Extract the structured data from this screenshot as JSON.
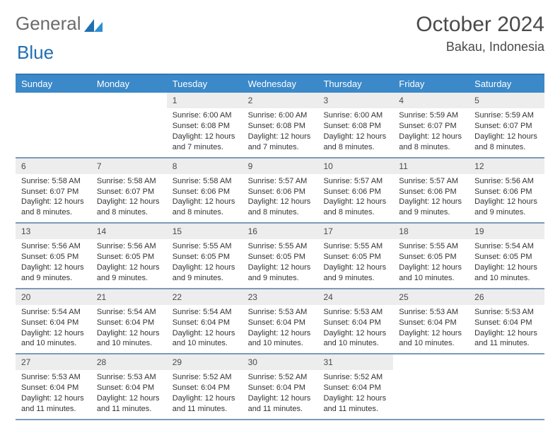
{
  "brand": {
    "part1": "General",
    "part2": "Blue"
  },
  "title": "October 2024",
  "location": "Bakau, Indonesia",
  "colors": {
    "header_bg": "#3b89c9",
    "header_text": "#ffffff",
    "week_border": "#7c9bb8",
    "daynum_bg": "#ededed",
    "text": "#333333",
    "top_border": "#2f77b7",
    "brand_blue": "#1f6fb2",
    "brand_gray": "#6b6b6b"
  },
  "day_headers": [
    "Sunday",
    "Monday",
    "Tuesday",
    "Wednesday",
    "Thursday",
    "Friday",
    "Saturday"
  ],
  "weeks": [
    [
      null,
      null,
      {
        "n": "1",
        "sr": "Sunrise: 6:00 AM",
        "ss": "Sunset: 6:08 PM",
        "dl1": "Daylight: 12 hours",
        "dl2": "and 7 minutes."
      },
      {
        "n": "2",
        "sr": "Sunrise: 6:00 AM",
        "ss": "Sunset: 6:08 PM",
        "dl1": "Daylight: 12 hours",
        "dl2": "and 7 minutes."
      },
      {
        "n": "3",
        "sr": "Sunrise: 6:00 AM",
        "ss": "Sunset: 6:08 PM",
        "dl1": "Daylight: 12 hours",
        "dl2": "and 8 minutes."
      },
      {
        "n": "4",
        "sr": "Sunrise: 5:59 AM",
        "ss": "Sunset: 6:07 PM",
        "dl1": "Daylight: 12 hours",
        "dl2": "and 8 minutes."
      },
      {
        "n": "5",
        "sr": "Sunrise: 5:59 AM",
        "ss": "Sunset: 6:07 PM",
        "dl1": "Daylight: 12 hours",
        "dl2": "and 8 minutes."
      }
    ],
    [
      {
        "n": "6",
        "sr": "Sunrise: 5:58 AM",
        "ss": "Sunset: 6:07 PM",
        "dl1": "Daylight: 12 hours",
        "dl2": "and 8 minutes."
      },
      {
        "n": "7",
        "sr": "Sunrise: 5:58 AM",
        "ss": "Sunset: 6:07 PM",
        "dl1": "Daylight: 12 hours",
        "dl2": "and 8 minutes."
      },
      {
        "n": "8",
        "sr": "Sunrise: 5:58 AM",
        "ss": "Sunset: 6:06 PM",
        "dl1": "Daylight: 12 hours",
        "dl2": "and 8 minutes."
      },
      {
        "n": "9",
        "sr": "Sunrise: 5:57 AM",
        "ss": "Sunset: 6:06 PM",
        "dl1": "Daylight: 12 hours",
        "dl2": "and 8 minutes."
      },
      {
        "n": "10",
        "sr": "Sunrise: 5:57 AM",
        "ss": "Sunset: 6:06 PM",
        "dl1": "Daylight: 12 hours",
        "dl2": "and 8 minutes."
      },
      {
        "n": "11",
        "sr": "Sunrise: 5:57 AM",
        "ss": "Sunset: 6:06 PM",
        "dl1": "Daylight: 12 hours",
        "dl2": "and 9 minutes."
      },
      {
        "n": "12",
        "sr": "Sunrise: 5:56 AM",
        "ss": "Sunset: 6:06 PM",
        "dl1": "Daylight: 12 hours",
        "dl2": "and 9 minutes."
      }
    ],
    [
      {
        "n": "13",
        "sr": "Sunrise: 5:56 AM",
        "ss": "Sunset: 6:05 PM",
        "dl1": "Daylight: 12 hours",
        "dl2": "and 9 minutes."
      },
      {
        "n": "14",
        "sr": "Sunrise: 5:56 AM",
        "ss": "Sunset: 6:05 PM",
        "dl1": "Daylight: 12 hours",
        "dl2": "and 9 minutes."
      },
      {
        "n": "15",
        "sr": "Sunrise: 5:55 AM",
        "ss": "Sunset: 6:05 PM",
        "dl1": "Daylight: 12 hours",
        "dl2": "and 9 minutes."
      },
      {
        "n": "16",
        "sr": "Sunrise: 5:55 AM",
        "ss": "Sunset: 6:05 PM",
        "dl1": "Daylight: 12 hours",
        "dl2": "and 9 minutes."
      },
      {
        "n": "17",
        "sr": "Sunrise: 5:55 AM",
        "ss": "Sunset: 6:05 PM",
        "dl1": "Daylight: 12 hours",
        "dl2": "and 9 minutes."
      },
      {
        "n": "18",
        "sr": "Sunrise: 5:55 AM",
        "ss": "Sunset: 6:05 PM",
        "dl1": "Daylight: 12 hours",
        "dl2": "and 10 minutes."
      },
      {
        "n": "19",
        "sr": "Sunrise: 5:54 AM",
        "ss": "Sunset: 6:05 PM",
        "dl1": "Daylight: 12 hours",
        "dl2": "and 10 minutes."
      }
    ],
    [
      {
        "n": "20",
        "sr": "Sunrise: 5:54 AM",
        "ss": "Sunset: 6:04 PM",
        "dl1": "Daylight: 12 hours",
        "dl2": "and 10 minutes."
      },
      {
        "n": "21",
        "sr": "Sunrise: 5:54 AM",
        "ss": "Sunset: 6:04 PM",
        "dl1": "Daylight: 12 hours",
        "dl2": "and 10 minutes."
      },
      {
        "n": "22",
        "sr": "Sunrise: 5:54 AM",
        "ss": "Sunset: 6:04 PM",
        "dl1": "Daylight: 12 hours",
        "dl2": "and 10 minutes."
      },
      {
        "n": "23",
        "sr": "Sunrise: 5:53 AM",
        "ss": "Sunset: 6:04 PM",
        "dl1": "Daylight: 12 hours",
        "dl2": "and 10 minutes."
      },
      {
        "n": "24",
        "sr": "Sunrise: 5:53 AM",
        "ss": "Sunset: 6:04 PM",
        "dl1": "Daylight: 12 hours",
        "dl2": "and 10 minutes."
      },
      {
        "n": "25",
        "sr": "Sunrise: 5:53 AM",
        "ss": "Sunset: 6:04 PM",
        "dl1": "Daylight: 12 hours",
        "dl2": "and 10 minutes."
      },
      {
        "n": "26",
        "sr": "Sunrise: 5:53 AM",
        "ss": "Sunset: 6:04 PM",
        "dl1": "Daylight: 12 hours",
        "dl2": "and 11 minutes."
      }
    ],
    [
      {
        "n": "27",
        "sr": "Sunrise: 5:53 AM",
        "ss": "Sunset: 6:04 PM",
        "dl1": "Daylight: 12 hours",
        "dl2": "and 11 minutes."
      },
      {
        "n": "28",
        "sr": "Sunrise: 5:53 AM",
        "ss": "Sunset: 6:04 PM",
        "dl1": "Daylight: 12 hours",
        "dl2": "and 11 minutes."
      },
      {
        "n": "29",
        "sr": "Sunrise: 5:52 AM",
        "ss": "Sunset: 6:04 PM",
        "dl1": "Daylight: 12 hours",
        "dl2": "and 11 minutes."
      },
      {
        "n": "30",
        "sr": "Sunrise: 5:52 AM",
        "ss": "Sunset: 6:04 PM",
        "dl1": "Daylight: 12 hours",
        "dl2": "and 11 minutes."
      },
      {
        "n": "31",
        "sr": "Sunrise: 5:52 AM",
        "ss": "Sunset: 6:04 PM",
        "dl1": "Daylight: 12 hours",
        "dl2": "and 11 minutes."
      },
      null,
      null
    ]
  ]
}
